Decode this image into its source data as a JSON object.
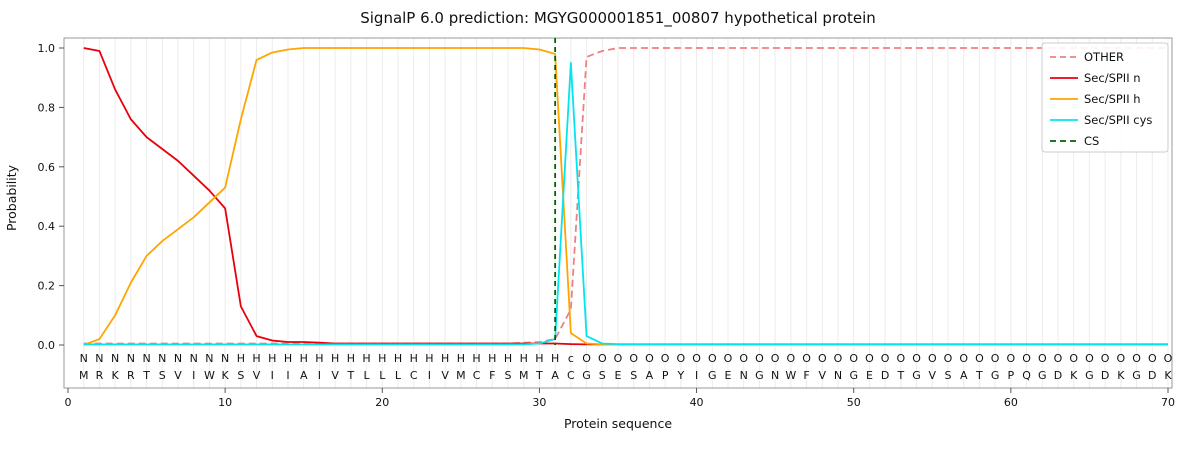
{
  "chart_data": {
    "type": "line",
    "title": "SignalP 6.0 prediction: MGYG000001851_00807 hypothetical protein",
    "xlabel": "Protein sequence",
    "ylabel": "Probability",
    "xlim": [
      0,
      70
    ],
    "ylim": [
      0.0,
      1.0
    ],
    "x_ticks": [
      0,
      10,
      20,
      30,
      40,
      50,
      60,
      70
    ],
    "y_ticks": [
      0.0,
      0.2,
      0.4,
      0.6,
      0.8,
      1.0
    ],
    "grid": "vertical line at every residue position",
    "legend_position": "upper right",
    "x": [
      1,
      2,
      3,
      4,
      5,
      6,
      7,
      8,
      9,
      10,
      11,
      12,
      13,
      14,
      15,
      16,
      17,
      18,
      19,
      20,
      21,
      22,
      23,
      24,
      25,
      26,
      27,
      28,
      29,
      30,
      31,
      32,
      33,
      34,
      35,
      36,
      37,
      38,
      39,
      40,
      41,
      42,
      43,
      44,
      45,
      46,
      47,
      48,
      49,
      50,
      51,
      52,
      53,
      54,
      55,
      56,
      57,
      58,
      59,
      60,
      61,
      62,
      63,
      64,
      65,
      66,
      67,
      68,
      69,
      70
    ],
    "series": [
      {
        "name": "OTHER",
        "color": "#f08080",
        "dash": "7 4",
        "values": [
          0.005,
          0.005,
          0.005,
          0.005,
          0.005,
          0.005,
          0.005,
          0.005,
          0.005,
          0.005,
          0.005,
          0.005,
          0.005,
          0.005,
          0.005,
          0.005,
          0.005,
          0.005,
          0.005,
          0.005,
          0.005,
          0.005,
          0.005,
          0.005,
          0.005,
          0.005,
          0.005,
          0.005,
          0.008,
          0.01,
          0.02,
          0.12,
          0.97,
          0.99,
          1.0,
          1.0,
          1.0,
          1.0,
          1.0,
          1.0,
          1.0,
          1.0,
          1.0,
          1.0,
          1.0,
          1.0,
          1.0,
          1.0,
          1.0,
          1.0,
          1.0,
          1.0,
          1.0,
          1.0,
          1.0,
          1.0,
          1.0,
          1.0,
          1.0,
          1.0,
          1.0,
          1.0,
          1.0,
          1.0,
          1.0,
          1.0,
          1.0,
          1.0,
          1.0,
          1.0
        ]
      },
      {
        "name": "Sec/SPII n",
        "color": "#e8000b",
        "dash": null,
        "values": [
          1.0,
          0.99,
          0.86,
          0.76,
          0.7,
          0.66,
          0.62,
          0.57,
          0.52,
          0.46,
          0.13,
          0.03,
          0.015,
          0.01,
          0.01,
          0.008,
          0.005,
          0.005,
          0.005,
          0.005,
          0.005,
          0.005,
          0.005,
          0.005,
          0.005,
          0.005,
          0.005,
          0.005,
          0.005,
          0.005,
          0.005,
          0.003,
          0.002,
          0.002,
          0.002,
          0.002,
          0.002,
          0.002,
          0.002,
          0.002,
          0.002,
          0.002,
          0.002,
          0.002,
          0.002,
          0.002,
          0.002,
          0.002,
          0.002,
          0.002,
          0.002,
          0.002,
          0.002,
          0.002,
          0.002,
          0.002,
          0.002,
          0.002,
          0.002,
          0.002,
          0.002,
          0.002,
          0.002,
          0.002,
          0.002,
          0.002,
          0.002,
          0.002,
          0.002,
          0.002
        ]
      },
      {
        "name": "Sec/SPII h",
        "color": "#ffa500",
        "dash": null,
        "values": [
          0.0,
          0.02,
          0.1,
          0.21,
          0.3,
          0.35,
          0.39,
          0.43,
          0.48,
          0.53,
          0.76,
          0.96,
          0.985,
          0.995,
          1.0,
          1.0,
          1.0,
          1.0,
          1.0,
          1.0,
          1.0,
          1.0,
          1.0,
          1.0,
          1.0,
          1.0,
          1.0,
          1.0,
          1.0,
          0.995,
          0.98,
          0.04,
          0.005,
          0.002,
          0.002,
          0.002,
          0.002,
          0.002,
          0.002,
          0.002,
          0.002,
          0.002,
          0.002,
          0.002,
          0.002,
          0.002,
          0.002,
          0.002,
          0.002,
          0.002,
          0.002,
          0.002,
          0.002,
          0.002,
          0.002,
          0.002,
          0.002,
          0.002,
          0.002,
          0.002,
          0.002,
          0.002,
          0.002,
          0.002,
          0.002,
          0.002,
          0.002,
          0.002,
          0.002,
          0.002
        ]
      },
      {
        "name": "Sec/SPII cys",
        "color": "#00e5ee",
        "dash": null,
        "values": [
          0.002,
          0.002,
          0.002,
          0.002,
          0.002,
          0.002,
          0.002,
          0.002,
          0.002,
          0.002,
          0.002,
          0.002,
          0.002,
          0.002,
          0.002,
          0.002,
          0.002,
          0.002,
          0.002,
          0.002,
          0.002,
          0.002,
          0.002,
          0.002,
          0.002,
          0.002,
          0.002,
          0.002,
          0.002,
          0.005,
          0.02,
          0.95,
          0.03,
          0.005,
          0.003,
          0.003,
          0.003,
          0.003,
          0.003,
          0.003,
          0.003,
          0.003,
          0.003,
          0.003,
          0.003,
          0.003,
          0.003,
          0.003,
          0.003,
          0.003,
          0.003,
          0.003,
          0.003,
          0.003,
          0.003,
          0.003,
          0.003,
          0.003,
          0.003,
          0.003,
          0.003,
          0.003,
          0.003,
          0.003,
          0.003,
          0.003,
          0.003,
          0.003,
          0.003,
          0.003
        ]
      }
    ],
    "cs_line": {
      "name": "CS",
      "x": 31,
      "color": "#006400",
      "dash": "5 4"
    },
    "legend": [
      {
        "label": "OTHER",
        "color": "#f08080",
        "dash": true
      },
      {
        "label": "Sec/SPII n",
        "color": "#e8000b",
        "dash": false
      },
      {
        "label": "Sec/SPII h",
        "color": "#ffa500",
        "dash": false
      },
      {
        "label": "Sec/SPII cys",
        "color": "#00e5ee",
        "dash": false
      },
      {
        "label": "CS",
        "color": "#006400",
        "dash": true
      }
    ],
    "sequence": "MRKRTSVIWKSVIIAIVTLLLCIVMCFSMTACGSESAPYIGENGNWFVNGEDTGVSATGPQGDKGDKGDK",
    "annotation": {
      "regions": [
        {
          "label": "n-region",
          "char": "N",
          "start": 1,
          "end": 10,
          "color": "#e8000b"
        },
        {
          "label": "h-region",
          "char": "H",
          "start": 11,
          "end": 31,
          "color": "#ffa500"
        },
        {
          "label": "cys",
          "char": "c",
          "start": 32,
          "end": 32,
          "color": "#00e5ee"
        },
        {
          "label": "other",
          "char": "O",
          "start": 33,
          "end": 70,
          "color": "#9a9a9a"
        }
      ]
    }
  }
}
